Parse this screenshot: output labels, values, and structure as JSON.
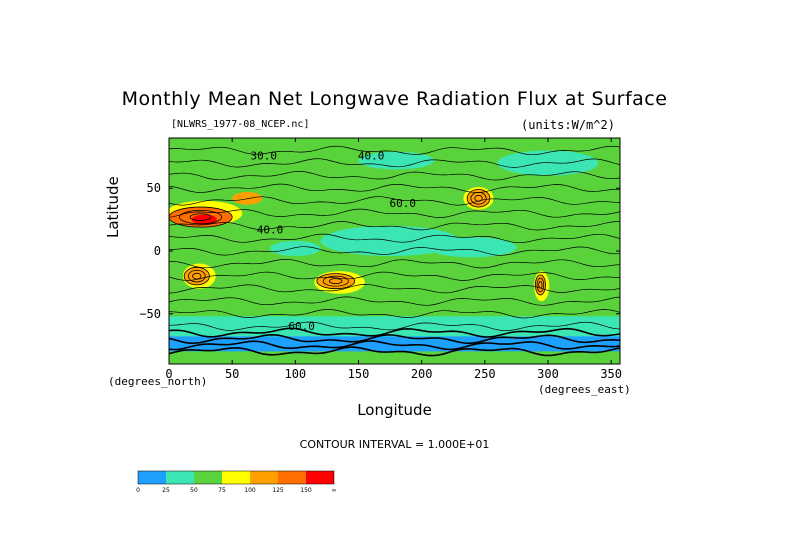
{
  "chart_data": {
    "type": "heatmap",
    "title": "Monthly Mean Net Longwave Radiation Flux at Surface",
    "subtitle_left": "[NLWRS_1977-08_NCEP.nc]",
    "subtitle_right": "(units:W/m^2)",
    "xlabel": "Longitude",
    "ylabel": "Latitude",
    "x_units": "(degrees_east)",
    "y_units": "(degrees_north)",
    "xlim": [
      0,
      357
    ],
    "ylim": [
      -90,
      90
    ],
    "x_ticks": [
      0,
      50,
      100,
      150,
      200,
      250,
      300,
      350
    ],
    "y_ticks": [
      50,
      0,
      -50
    ],
    "y_tick_labels": [
      "50",
      "0",
      "−50"
    ],
    "contour_interval_text": "CONTOUR INTERVAL = 1.000E+01",
    "contour_labels": [
      {
        "text": "30.0",
        "lon": 75,
        "lat": 73
      },
      {
        "text": "40.0",
        "lon": 160,
        "lat": 73
      },
      {
        "text": "40.0",
        "lon": 80,
        "lat": 14
      },
      {
        "text": "60.0",
        "lon": 185,
        "lat": 35
      },
      {
        "text": "60.0",
        "lon": 105,
        "lat": -63
      }
    ],
    "colorbar": {
      "levels": [
        "0",
        "25",
        "50",
        "75",
        "100",
        "125",
        "150",
        "∞"
      ],
      "colors": [
        "#1ea0ff",
        "#3ce6b4",
        "#5ad23c",
        "#ffff00",
        "#ffa000",
        "#ff6e00",
        "#ff0000"
      ]
    },
    "regions": [
      {
        "band": "arctic",
        "lat": [
          60,
          90
        ],
        "lon": [
          0,
          357
        ],
        "level": "25-75",
        "color": "#5ad23c"
      },
      {
        "band": "northern-midlat",
        "lat": [
          20,
          60
        ],
        "lon": [
          0,
          357
        ],
        "level": "50-75",
        "color": "#5ad23c"
      },
      {
        "band": "sahara-arabia",
        "lat": [
          15,
          35
        ],
        "lon": [
          0,
          60
        ],
        "level": "125-175",
        "color": "#ff6e00"
      },
      {
        "band": "western-north-america",
        "lat": [
          30,
          50
        ],
        "lon": [
          235,
          255
        ],
        "level": "100-150",
        "color": "#ff6e00"
      },
      {
        "band": "tropical-pacific",
        "lat": [
          -10,
          20
        ],
        "lon": [
          120,
          280
        ],
        "level": "25-50",
        "color": "#3ce6b4"
      },
      {
        "band": "southern-africa",
        "lat": [
          -30,
          -10
        ],
        "lon": [
          10,
          35
        ],
        "level": "100-125",
        "color": "#ffa000"
      },
      {
        "band": "australia",
        "lat": [
          -35,
          -15
        ],
        "lon": [
          115,
          150
        ],
        "level": "100-125",
        "color": "#ffa000"
      },
      {
        "band": "south-america",
        "lat": [
          -40,
          -15
        ],
        "lon": [
          290,
          300
        ],
        "level": "100-125",
        "color": "#ffa000"
      },
      {
        "band": "southern-ocean",
        "lat": [
          -75,
          -50
        ],
        "lon": [
          0,
          357
        ],
        "level": "25-50",
        "color": "#3ce6b4"
      },
      {
        "band": "antarctica",
        "lat": [
          -90,
          -70
        ],
        "lon": [
          0,
          357
        ],
        "level": "0-25",
        "color": "#1ea0ff"
      }
    ]
  }
}
